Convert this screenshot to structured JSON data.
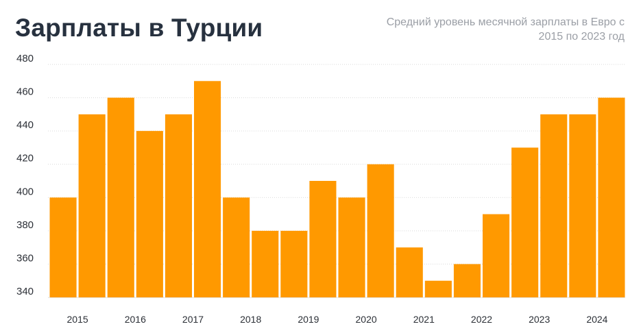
{
  "header": {
    "title": "Зарплаты в Турции",
    "subtitle": "Средний уровень месячной зарплаты в Евро с 2015 по 2023 год"
  },
  "colors": {
    "bar": "#ff9900",
    "grid": "#d9d9d9",
    "title": "#27313f",
    "subtitle": "#9a9ea5"
  },
  "chart_data": {
    "type": "bar",
    "title": "Зарплаты в Турции",
    "subtitle": "Средний уровень месячной зарплаты в Евро с 2015 по 2023 год",
    "values": [
      400,
      450,
      460,
      440,
      450,
      470,
      400,
      380,
      380,
      410,
      400,
      420,
      370,
      350,
      360,
      390,
      430,
      450,
      450,
      460
    ],
    "ylim": [
      340,
      480
    ],
    "yticks": [
      "340",
      "360",
      "380",
      "400",
      "420",
      "440",
      "460",
      "480"
    ],
    "xticks": [
      "2015",
      "2016",
      "2017",
      "2018",
      "2019",
      "2020",
      "2021",
      "2022",
      "2023",
      "2024"
    ],
    "grid": true
  }
}
